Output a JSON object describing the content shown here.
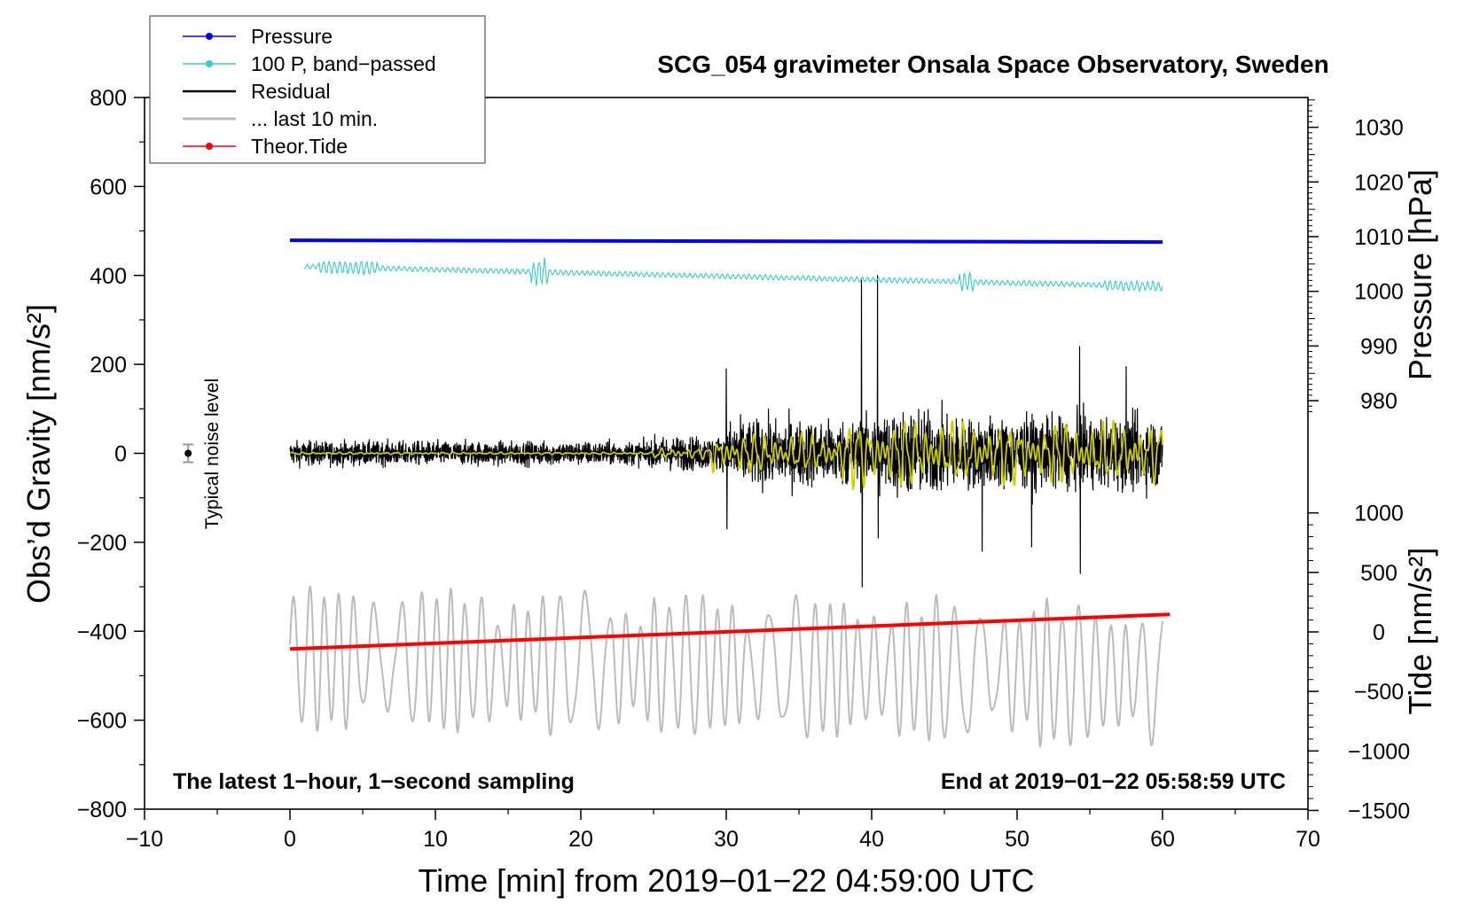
{
  "chart_data": {
    "type": "line",
    "title": "SCG_054 gravimeter Onsala Space Observatory, Sweden",
    "xlabel": "Time [min] from 2019−01−22 04:59:00 UTC",
    "ylabel_left": "Obs’d Gravity [nm/s²]",
    "ylabel_pressure": "Pressure [hPa]",
    "ylabel_tide": "Tide [nm/s²]",
    "xlim": [
      -10,
      70
    ],
    "ylim": [
      -800,
      800
    ],
    "x_ticks": [
      "−10",
      "0",
      "10",
      "20",
      "30",
      "40",
      "50",
      "60",
      "70"
    ],
    "y_ticks": [
      "800",
      "600",
      "400",
      "200",
      "0",
      "−200",
      "−400",
      "−600",
      "−800"
    ],
    "pressure_ticks": [
      "1030",
      "1020",
      "1010",
      "1000",
      "990",
      "980"
    ],
    "tide_ticks": [
      "1000",
      "500",
      "0",
      "−500",
      "−1000",
      "−1500"
    ],
    "annotation_left": "The latest 1−hour, 1−second sampling",
    "annotation_right": "End at 2019−01−22 05:58:59 UTC",
    "noise_label": "Typical noise level",
    "legend": [
      {
        "label": "Pressure",
        "color": "#0000ff",
        "marker": "dot"
      },
      {
        "label": "100 P, band−passed",
        "color": "#33cccc",
        "marker": "dot"
      },
      {
        "label": "Residual",
        "color": "#000000",
        "marker": "none"
      },
      {
        "label": "... last 10 min.",
        "color": "#bbbbbb",
        "marker": "none"
      },
      {
        "label": "Theor.Tide",
        "color": "#ff0000",
        "marker": "dot"
      }
    ],
    "series": [
      {
        "name": "Pressure",
        "color": "#0000ff",
        "x": [
          0,
          60
        ],
        "y": [
          479,
          475
        ]
      },
      {
        "name": "100 P, band−passed",
        "color": "#33cccc",
        "x": [
          1,
          60
        ],
        "y": [
          420,
          375
        ]
      },
      {
        "name": "Residual",
        "color": "#000000",
        "x": [
          0,
          60
        ],
        "y": [
          0,
          0
        ]
      },
      {
        "name": "Residual (filtered)",
        "color": "#cccc00",
        "x": [
          0,
          60
        ],
        "y": [
          0,
          0
        ]
      },
      {
        "name": "... last 10 min.",
        "color": "#bbbbbb",
        "x": [
          0,
          60
        ],
        "y": [
          -460,
          -500
        ]
      },
      {
        "name": "Theor.Tide",
        "color": "#ff0000",
        "x": [
          0,
          60.5
        ],
        "y": [
          -440,
          -362
        ]
      }
    ]
  }
}
